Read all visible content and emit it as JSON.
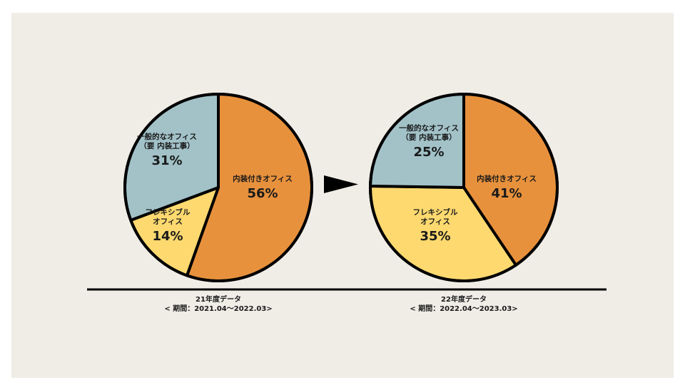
{
  "chart_data": [
    {
      "type": "pie",
      "caption": [
        "21年度データ",
        "< 期間：2021.04〜2022.03>"
      ],
      "slices": [
        {
          "label": [
            "内装付きオフィス"
          ],
          "value": 56,
          "value_label": "56%",
          "color": "#e8913c"
        },
        {
          "label": [
            "フレキシブル",
            "オフィス"
          ],
          "value": 14,
          "value_label": "14%",
          "color": "#fdd96f"
        },
        {
          "label": [
            "一般的なオフィス",
            "（要 内装工事）"
          ],
          "value": 31,
          "value_label": "31%",
          "color": "#a2c2c8"
        }
      ]
    },
    {
      "type": "pie",
      "caption": [
        "22年度データ",
        "< 期間：2022.04〜2023.03>"
      ],
      "slices": [
        {
          "label": [
            "内装付きオフィス"
          ],
          "value": 41,
          "value_label": "41%",
          "color": "#e8913c"
        },
        {
          "label": [
            "フレキシブル",
            "オフィス"
          ],
          "value": 35,
          "value_label": "35%",
          "color": "#fdd96f"
        },
        {
          "label": [
            "一般的なオフィス",
            "（要 内装工事）"
          ],
          "value": 25,
          "value_label": "25%",
          "color": "#a2c2c8"
        }
      ]
    }
  ],
  "arrow_icon": "triangle-right-icon",
  "colors": {
    "background": "#f0ede7",
    "outline": "#000000"
  }
}
